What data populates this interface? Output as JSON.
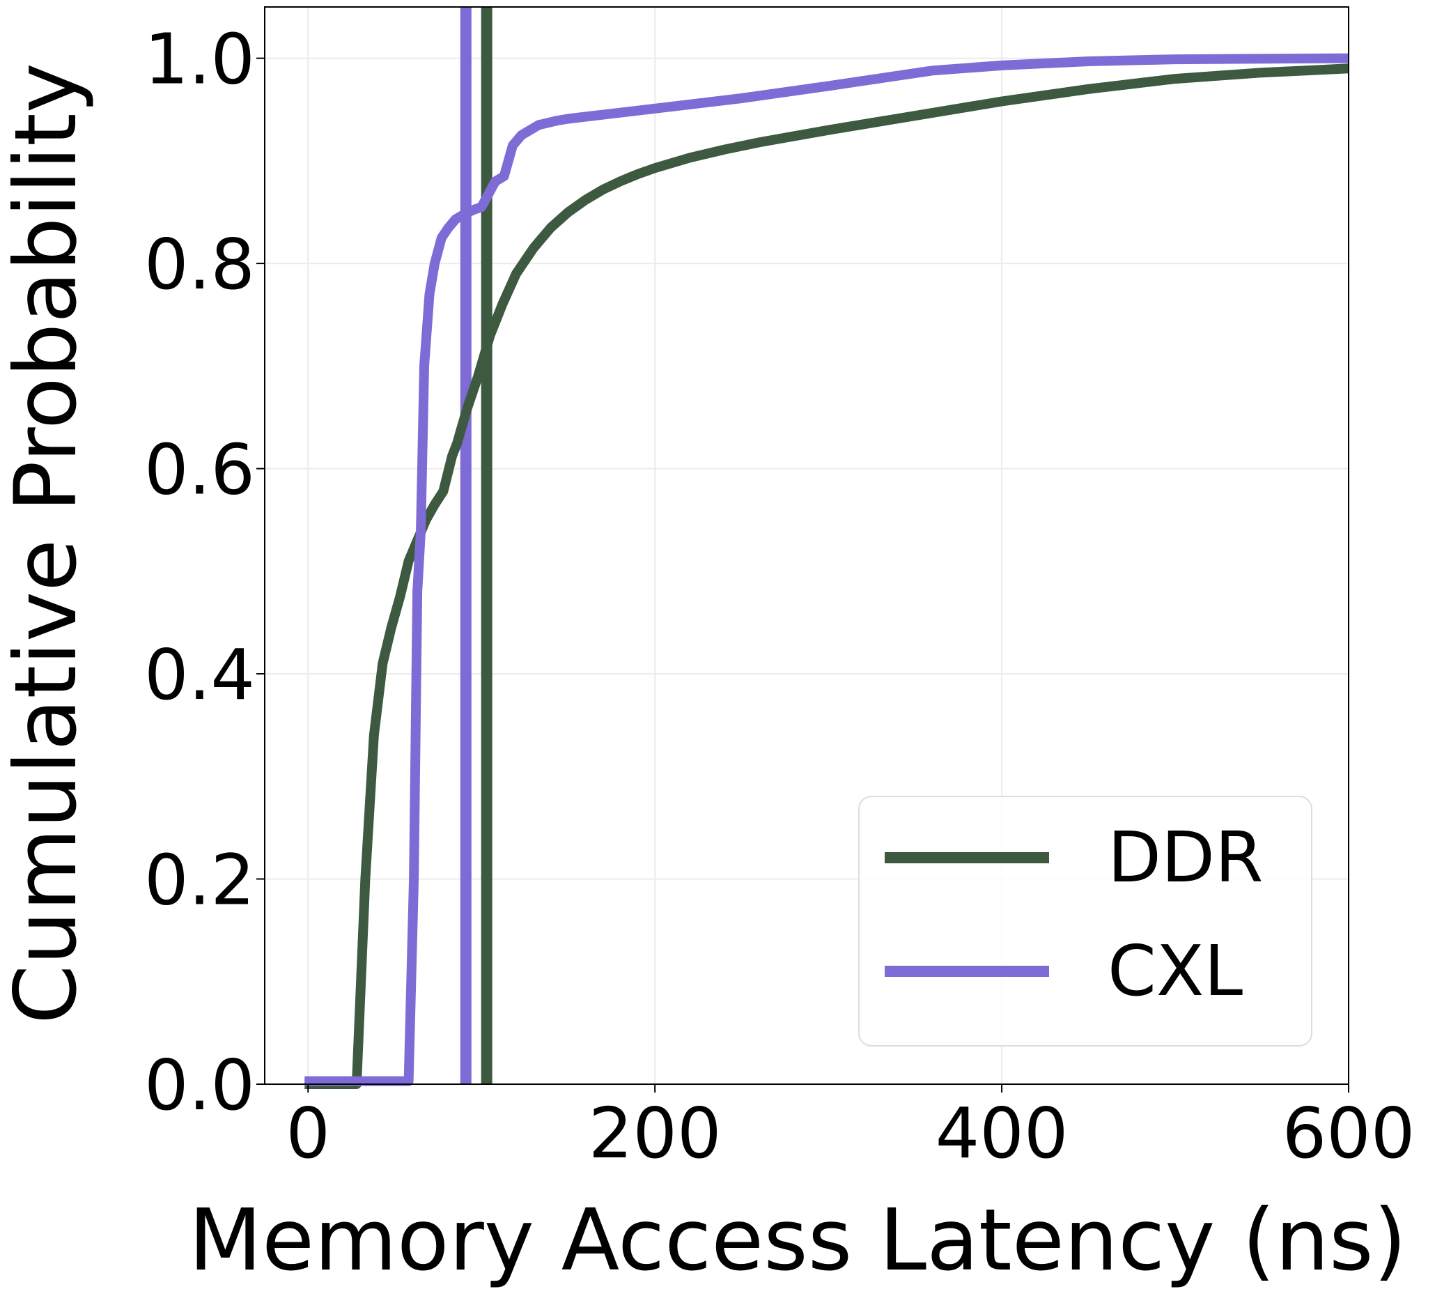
{
  "chart_data": {
    "type": "line",
    "xlabel": "Memory Access Latency (ns)",
    "ylabel": "Cumulative Probability",
    "xlim": [
      -25,
      600
    ],
    "ylim": [
      0,
      1.05
    ],
    "xticks": [
      0,
      200,
      400,
      600
    ],
    "xtick_labels": [
      "0",
      "200",
      "400",
      "600"
    ],
    "yticks": [
      0,
      0.2,
      0.4,
      0.6,
      0.8,
      1.0
    ],
    "ytick_labels": [
      "0.0",
      "0.2",
      "0.4",
      "0.6",
      "0.8",
      "1.0"
    ],
    "grid": true,
    "legend_position": "lower-right",
    "series": [
      {
        "name": "DDR",
        "color": "#3d5a40",
        "x": [
          -2,
          28,
          33,
          38,
          43,
          48,
          53,
          58,
          63,
          68,
          73,
          78,
          83,
          86,
          88,
          92,
          98,
          105,
          112,
          120,
          130,
          140,
          150,
          160,
          170,
          180,
          190,
          200,
          220,
          240,
          260,
          280,
          300,
          350,
          400,
          450,
          500,
          550,
          600
        ],
        "y": [
          0.0,
          0.0,
          0.2,
          0.34,
          0.41,
          0.445,
          0.475,
          0.51,
          0.53,
          0.55,
          0.565,
          0.578,
          0.612,
          0.625,
          0.637,
          0.66,
          0.69,
          0.73,
          0.76,
          0.79,
          0.815,
          0.835,
          0.85,
          0.862,
          0.872,
          0.88,
          0.887,
          0.893,
          0.903,
          0.911,
          0.918,
          0.924,
          0.93,
          0.944,
          0.958,
          0.97,
          0.98,
          0.986,
          0.99
        ]
      },
      {
        "name": "CXL",
        "color": "#7f6bd6",
        "x": [
          -2,
          58,
          61,
          63,
          65,
          67,
          70,
          73,
          77,
          81,
          85,
          90,
          95,
          100,
          108,
          113,
          118,
          123,
          128,
          133,
          138,
          143,
          150,
          160,
          180,
          200,
          250,
          300,
          360,
          400,
          450,
          500,
          600
        ],
        "y": [
          0.003,
          0.003,
          0.2,
          0.48,
          0.54,
          0.7,
          0.77,
          0.8,
          0.825,
          0.835,
          0.843,
          0.848,
          0.852,
          0.855,
          0.88,
          0.885,
          0.915,
          0.925,
          0.93,
          0.935,
          0.937,
          0.939,
          0.941,
          0.943,
          0.947,
          0.951,
          0.961,
          0.973,
          0.988,
          0.993,
          0.997,
          0.999,
          1.0
        ]
      }
    ],
    "vertical_lines": [
      {
        "x": 103,
        "color": "#3d5a40"
      },
      {
        "x": 91,
        "color": "#7f6bd6"
      }
    ]
  },
  "legend": {
    "entries": [
      {
        "label": "DDR",
        "color": "#3d5a40"
      },
      {
        "label": "CXL",
        "color": "#7f6bd6"
      }
    ]
  }
}
